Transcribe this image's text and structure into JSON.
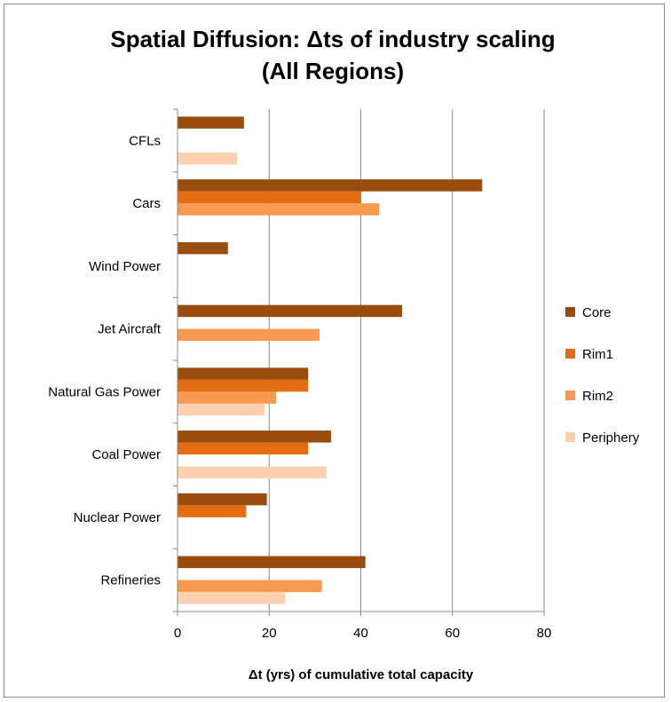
{
  "chart_data": {
    "type": "bar",
    "orientation": "horizontal",
    "title_line1": "Spatial Diffusion: Δts of industry scaling",
    "title_line2": "(All Regions)",
    "xlabel": "Δt (yrs) of cumulative total capacity",
    "ylabel": "",
    "xlim": [
      0,
      80
    ],
    "xticks": [
      "0",
      "20",
      "40",
      "60",
      "80"
    ],
    "grid": true,
    "legend_position": "right",
    "categories": [
      "CFLs",
      "Cars",
      "Wind Power",
      "Jet Aircraft",
      "Natural Gas Power",
      "Coal Power",
      "Nuclear Power",
      "Refineries"
    ],
    "series": [
      {
        "name": "Core",
        "color": "#9a4b0e",
        "values": [
          14.5,
          66.5,
          11,
          49,
          28.5,
          33.5,
          19.5,
          41
        ]
      },
      {
        "name": "Rim1",
        "color": "#e46d13",
        "values": [
          null,
          40,
          null,
          null,
          28.5,
          28.5,
          15,
          null
        ]
      },
      {
        "name": "Rim2",
        "color": "#f7994e",
        "values": [
          null,
          44,
          null,
          31,
          21.5,
          null,
          null,
          31.5
        ]
      },
      {
        "name": "Periphery",
        "color": "#fbd1b2",
        "values": [
          13,
          null,
          null,
          null,
          19,
          32.5,
          null,
          23.5
        ]
      }
    ]
  }
}
